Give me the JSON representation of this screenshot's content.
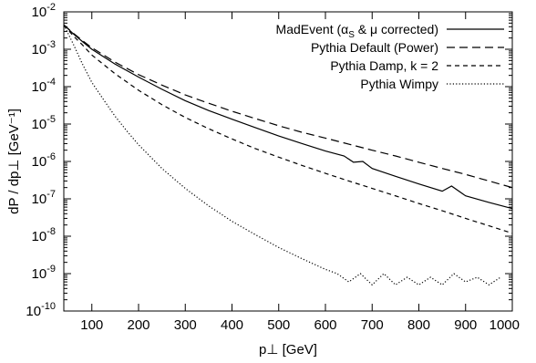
{
  "chart_data": {
    "type": "line",
    "xlabel": "p⊥   [GeV]",
    "ylabel": "dP / dp⊥  [GeV⁻¹]",
    "xlim": [
      40,
      1000
    ],
    "ylim": [
      1e-10,
      0.01
    ],
    "yscale": "log",
    "grid": false,
    "legend_position": "top-right",
    "x_ticks": [
      100,
      200,
      300,
      400,
      500,
      600,
      700,
      800,
      900,
      1000
    ],
    "x_tick_labels": [
      "100",
      "200",
      "300",
      "400",
      "500",
      "600",
      "700",
      "800",
      "900",
      "1000"
    ],
    "y_ticks": [
      -10,
      -9,
      -8,
      -7,
      -6,
      -5,
      -4,
      -3,
      -2
    ],
    "y_tick_base": "10",
    "y_tick_exponents": [
      "-10",
      "-9",
      "-8",
      "-7",
      "-6",
      "-5",
      "-4",
      "-3",
      "-2"
    ],
    "series": [
      {
        "name": "MadEvent (αS & μ corrected)",
        "name_parts": [
          "MadEvent (",
          "α",
          "S",
          " & μ corrected)"
        ],
        "style": "solid",
        "x": [
          40,
          60,
          80,
          100,
          150,
          200,
          250,
          300,
          350,
          400,
          450,
          500,
          550,
          600,
          640,
          660,
          680,
          700,
          750,
          800,
          850,
          870,
          900,
          950,
          1000
        ],
        "y": [
          0.0045,
          0.0026,
          0.0016,
          0.001,
          0.0004,
          0.00018,
          8.5e-05,
          4.2e-05,
          2.3e-05,
          1.35e-05,
          8e-06,
          4.8e-06,
          3e-06,
          1.9e-06,
          1.4e-06,
          9.5e-07,
          1e-06,
          6.5e-07,
          4e-07,
          2.5e-07,
          1.6e-07,
          2.2e-07,
          1.2e-07,
          8e-08,
          5.5e-08
        ]
      },
      {
        "name": "Pythia Default (Power)",
        "style": "dashed",
        "x": [
          40,
          60,
          80,
          100,
          150,
          200,
          250,
          300,
          350,
          400,
          450,
          500,
          550,
          600,
          650,
          700,
          750,
          800,
          850,
          900,
          950,
          1000
        ],
        "y": [
          0.0045,
          0.0027,
          0.0017,
          0.0011,
          0.00045,
          0.00021,
          0.00011,
          6e-05,
          3.6e-05,
          2.2e-05,
          1.4e-05,
          9e-06,
          6e-06,
          4.2e-06,
          2.9e-06,
          2e-06,
          1.4e-06,
          9.5e-07,
          6.5e-07,
          4.5e-07,
          3e-07,
          2e-07
        ]
      },
      {
        "name": "Pythia Damp, k = 2",
        "style": "short-dashed",
        "x": [
          40,
          60,
          80,
          100,
          150,
          200,
          250,
          300,
          350,
          400,
          450,
          500,
          550,
          600,
          650,
          700,
          750,
          800,
          850,
          900,
          950,
          1000
        ],
        "y": [
          0.0045,
          0.0023,
          0.0013,
          0.0007,
          0.00022,
          8e-05,
          3.3e-05,
          1.5e-05,
          7.5e-06,
          4e-06,
          2.2e-06,
          1.3e-06,
          7.8e-07,
          4.8e-07,
          3e-07,
          1.9e-07,
          1.2e-07,
          7.5e-08,
          4.8e-08,
          3e-08,
          1.9e-08,
          1.2e-08
        ]
      },
      {
        "name": "Pythia Wimpy",
        "style": "dotted",
        "x": [
          40,
          60,
          80,
          100,
          125,
          150,
          175,
          200,
          250,
          300,
          350,
          400,
          450,
          500,
          550,
          600,
          625,
          650,
          675,
          700,
          725,
          750,
          775,
          800,
          825,
          850,
          875,
          900,
          925,
          950,
          975
        ],
        "y": [
          0.0045,
          0.0014,
          0.0004,
          0.00013,
          4.5e-05,
          1.6e-05,
          6.5e-06,
          2.8e-06,
          6.5e-07,
          1.9e-07,
          6.5e-08,
          2.5e-08,
          1.1e-08,
          5e-09,
          2.5e-09,
          1.3e-09,
          1e-09,
          6e-10,
          1e-09,
          5e-10,
          1e-09,
          5e-10,
          8e-10,
          5e-10,
          8e-10,
          5e-10,
          1e-09,
          6e-10,
          8e-10,
          5e-10,
          8e-10
        ]
      }
    ]
  }
}
